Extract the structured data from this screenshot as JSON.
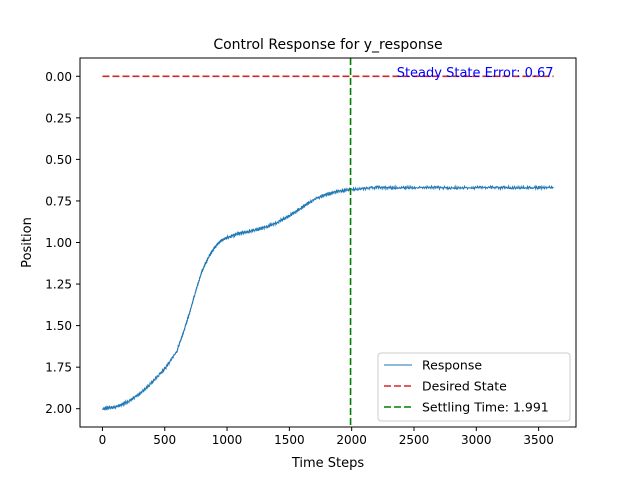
{
  "chart_data": {
    "type": "line",
    "title": "Control Response for y_response",
    "xlabel": "Time Steps",
    "ylabel": "Position",
    "xlim": [
      -180,
      3800
    ],
    "ylim": [
      2.11,
      -0.11
    ],
    "y_inverted": true,
    "grid": false,
    "x_ticks": [
      0,
      500,
      1000,
      1500,
      2000,
      2500,
      3000,
      3500
    ],
    "x_tick_labels": [
      "0",
      "500",
      "1000",
      "1500",
      "2000",
      "2500",
      "3000",
      "3500"
    ],
    "y_ticks": [
      0.0,
      0.25,
      0.5,
      0.75,
      1.0,
      1.25,
      1.5,
      1.75,
      2.0
    ],
    "y_tick_labels": [
      "0.00",
      "0.25",
      "0.50",
      "0.75",
      "1.00",
      "1.25",
      "1.50",
      "1.75",
      "2.00"
    ],
    "series": [
      {
        "name": "Response",
        "style": "solid",
        "color": "#1f77b4",
        "x": [
          0,
          100,
          200,
          300,
          400,
          500,
          600,
          650,
          700,
          750,
          800,
          850,
          900,
          950,
          1000,
          1100,
          1200,
          1300,
          1400,
          1500,
          1600,
          1700,
          1800,
          1900,
          2000,
          2200,
          2400,
          2600,
          2800,
          3000,
          3200,
          3400,
          3620
        ],
        "y": [
          2.0,
          1.99,
          1.96,
          1.91,
          1.84,
          1.76,
          1.65,
          1.54,
          1.42,
          1.29,
          1.17,
          1.09,
          1.03,
          0.99,
          0.97,
          0.945,
          0.93,
          0.91,
          0.88,
          0.84,
          0.79,
          0.74,
          0.71,
          0.69,
          0.68,
          0.67,
          0.67,
          0.67,
          0.67,
          0.67,
          0.67,
          0.67,
          0.67
        ]
      },
      {
        "name": "Desired State",
        "style": "dashed",
        "color": "#d62728",
        "x": [
          0,
          3620
        ],
        "y": [
          0.0,
          0.0
        ]
      }
    ],
    "vlines": [
      {
        "name": "Settling Time: 1.991",
        "x": 1991,
        "style": "dashed",
        "color": "#008000"
      }
    ],
    "annotation": {
      "text": "Steady State Error: 0.67",
      "x": 3620,
      "y": -0.02,
      "color": "#0000ff"
    },
    "legend": {
      "position": "lower-right",
      "entries": [
        "Response",
        "Desired State",
        "Settling Time: 1.991"
      ]
    }
  }
}
